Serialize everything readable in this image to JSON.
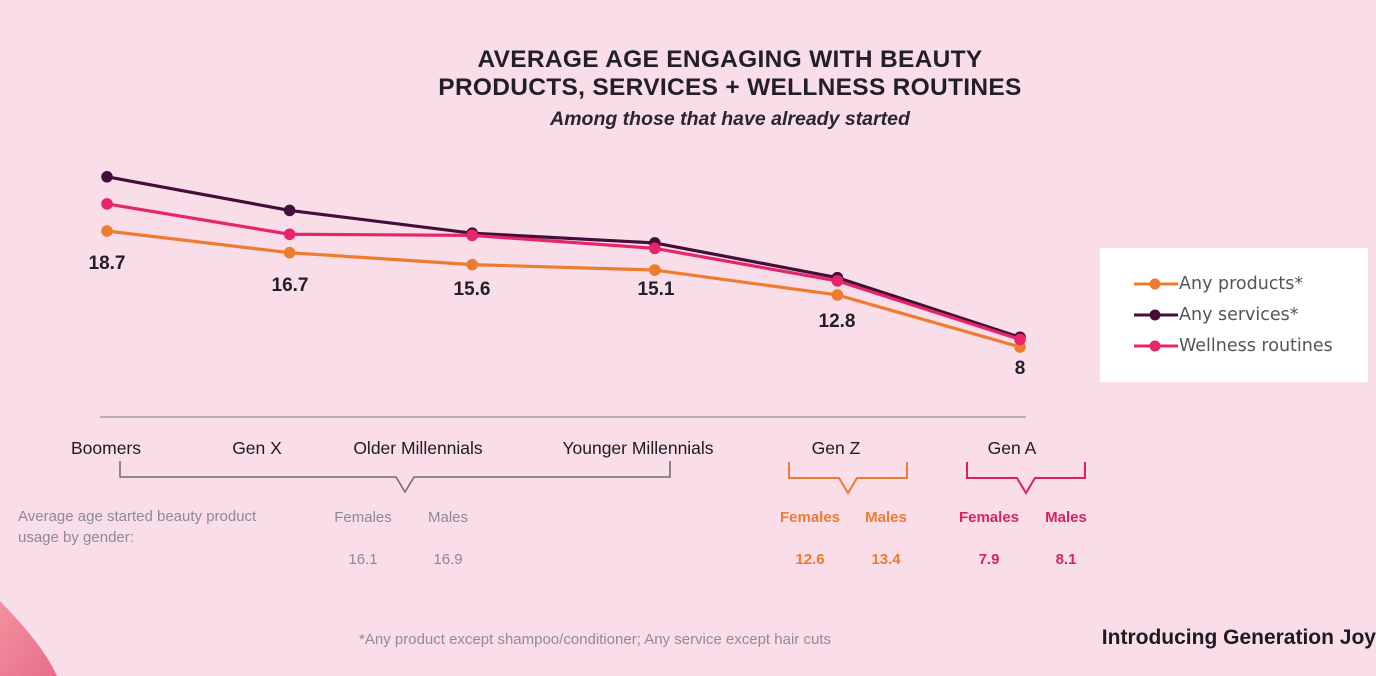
{
  "title": {
    "line1": "AVERAGE AGE ENGAGING WITH BEAUTY",
    "line2": "PRODUCTS, SERVICES + WELLNESS ROUTINES",
    "subtitle": "Among those that have already started"
  },
  "legend": {
    "items": [
      {
        "label": "Any products*",
        "color": "#ee7b2e"
      },
      {
        "label": "Any services*",
        "color": "#450d3a"
      },
      {
        "label": "Wellness routines",
        "color": "#e7256b"
      }
    ]
  },
  "chart_data": {
    "type": "line",
    "title": "AVERAGE AGE ENGAGING WITH BEAUTY PRODUCTS, SERVICES + WELLNESS ROUTINES",
    "subtitle": "Among those that have already started",
    "categories": [
      "Boomers",
      "Gen X",
      "Older Millennials",
      "Younger Millennials",
      "Gen Z",
      "Gen A"
    ],
    "series": [
      {
        "name": "Any products*",
        "color": "#ee7b2e",
        "values": [
          18.7,
          16.7,
          15.6,
          15.1,
          12.8,
          8
        ],
        "point_labels": [
          "18.7",
          "16.7",
          "15.6",
          "15.1",
          "12.8",
          "8"
        ]
      },
      {
        "name": "Any services*",
        "color": "#450d3a",
        "values": [
          23.7,
          20.6,
          18.5,
          17.6,
          14.4,
          8.9
        ],
        "values_estimated": true
      },
      {
        "name": "Wellness routines",
        "color": "#e7256b",
        "values": [
          21.2,
          18.4,
          18.3,
          17.1,
          14.1,
          8.7
        ],
        "values_estimated": true
      }
    ],
    "y_axis_visible": false,
    "legend_position": "right",
    "grid": false
  },
  "gender_section": {
    "caption_line1": "Average age started beauty product",
    "caption_line2": "usage by gender:",
    "groups": [
      {
        "group": "Boomers to Younger Millennials",
        "color": "#8e8994",
        "females_label": "Females",
        "males_label": "Males",
        "females_value": "16.1",
        "males_value": "16.9"
      },
      {
        "group": "Gen Z",
        "color": "#ee7b2e",
        "females_label": "Females",
        "males_label": "Males",
        "females_value": "12.6",
        "males_value": "13.4"
      },
      {
        "group": "Gen A",
        "color": "#d8235f",
        "females_label": "Females",
        "males_label": "Males",
        "females_value": "7.9",
        "males_value": "8.1"
      }
    ]
  },
  "footnote": "*Any product except shampoo/conditioner; Any service except hair cuts",
  "tagline": "Introducing Generation Joy",
  "colors": {
    "background": "#f9dde9",
    "accent_orange": "#ee7b2e",
    "accent_purple": "#450d3a",
    "accent_pink": "#e7256b",
    "accent_crimson": "#d8235f",
    "axis_gray": "#b6afb6",
    "text_dark": "#231f26",
    "text_gray": "#8e8994"
  }
}
